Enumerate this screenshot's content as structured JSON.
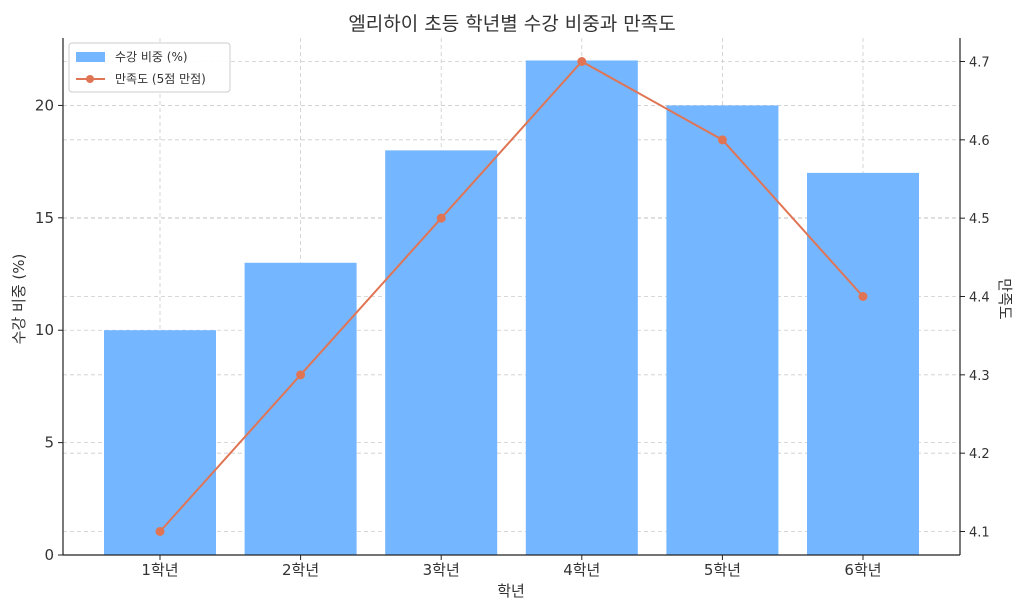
{
  "chart_data": {
    "type": "bar",
    "title": "엘리하이 초등 학년별 수강 비중과 만족도",
    "xlabel": "학년",
    "ylabel": "수강 비중 (%)",
    "y2label": "만족도",
    "categories": [
      "1학년",
      "2학년",
      "3학년",
      "4학년",
      "5학년",
      "6학년"
    ],
    "series": [
      {
        "name": "수강 비중 (%)",
        "type": "bar",
        "axis": "left",
        "values": [
          10,
          13,
          18,
          22,
          20,
          17
        ],
        "color": "#74b6ff"
      },
      {
        "name": "만족도 (5점 만점)",
        "type": "line",
        "axis": "right",
        "values": [
          4.1,
          4.3,
          4.5,
          4.7,
          4.6,
          4.4
        ],
        "color": "#e07555"
      }
    ],
    "ylim": [
      0,
      23
    ],
    "y2lim": [
      4.07,
      4.73
    ],
    "yticks": [
      "0",
      "5",
      "10",
      "15",
      "20"
    ],
    "y2ticks": [
      "4.1",
      "4.2",
      "4.3",
      "4.4",
      "4.5",
      "4.6",
      "4.7"
    ],
    "grid": true,
    "legend_position": "top-left"
  }
}
